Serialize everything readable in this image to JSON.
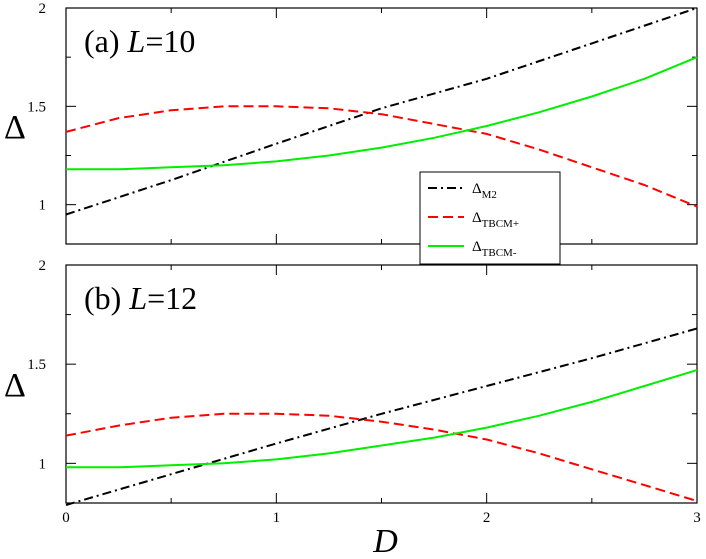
{
  "chart_data": [
    {
      "type": "line",
      "panel_label": "(a) ",
      "panel_var": "L",
      "panel_value": "=10",
      "xlabel": "D",
      "ylabel": "Δ",
      "xlim": [
        0,
        3
      ],
      "ylim": [
        0.8,
        2.0
      ],
      "xticks": [
        0,
        1,
        2,
        3
      ],
      "yticks": [
        1,
        1.5,
        2
      ],
      "ytick_labels": [
        "1",
        "1.5",
        "2"
      ],
      "grid": false,
      "legend_position": "bottom-center",
      "series": [
        {
          "name": "Δ",
          "sub": "M2",
          "color": "#000000",
          "style": "dashdot",
          "x": [
            0,
            0.5,
            1,
            1.5,
            2,
            2.5,
            3
          ],
          "y": [
            0.95,
            1.125,
            1.31,
            1.49,
            1.64,
            1.82,
            2.0
          ]
        },
        {
          "name": "Δ",
          "sub": "TBCM+",
          "color": "#ff0000",
          "style": "dashed",
          "x": [
            0,
            0.25,
            0.5,
            0.75,
            1,
            1.25,
            1.5,
            1.75,
            2,
            2.25,
            2.5,
            2.75,
            3
          ],
          "y": [
            1.37,
            1.44,
            1.48,
            1.5,
            1.5,
            1.49,
            1.46,
            1.41,
            1.36,
            1.28,
            1.19,
            1.1,
            0.99
          ]
        },
        {
          "name": "Δ",
          "sub": "TBCM-",
          "color": "#00ee00",
          "style": "solid",
          "x": [
            0,
            0.25,
            0.5,
            0.75,
            1,
            1.25,
            1.5,
            1.75,
            2,
            2.25,
            2.5,
            2.75,
            3
          ],
          "y": [
            1.18,
            1.18,
            1.19,
            1.2,
            1.22,
            1.25,
            1.29,
            1.34,
            1.4,
            1.47,
            1.55,
            1.64,
            1.75
          ]
        }
      ]
    },
    {
      "type": "line",
      "panel_label": "(b) ",
      "panel_var": "L",
      "panel_value": "=12",
      "xlabel": "D",
      "ylabel": "Δ",
      "xlim": [
        0,
        3
      ],
      "ylim": [
        0.8,
        2.0
      ],
      "xticks": [
        0,
        1,
        2,
        3
      ],
      "xtick_labels": [
        "0",
        "1",
        "2",
        "3"
      ],
      "yticks": [
        1,
        1.5,
        2
      ],
      "ytick_labels": [
        "1",
        "1.5",
        "2"
      ],
      "grid": false,
      "series": [
        {
          "name": "Δ",
          "sub": "M2",
          "color": "#000000",
          "style": "dashdot",
          "x": [
            0,
            0.5,
            1,
            1.5,
            2,
            2.5,
            3
          ],
          "y": [
            0.79,
            0.945,
            1.1,
            1.25,
            1.39,
            1.53,
            1.68
          ]
        },
        {
          "name": "Δ",
          "sub": "TBCM+",
          "color": "#ff0000",
          "style": "dashed",
          "x": [
            0,
            0.25,
            0.5,
            0.75,
            1,
            1.25,
            1.5,
            1.75,
            2,
            2.25,
            2.5,
            2.75,
            3
          ],
          "y": [
            1.14,
            1.19,
            1.23,
            1.25,
            1.25,
            1.24,
            1.21,
            1.17,
            1.12,
            1.05,
            0.97,
            0.89,
            0.81
          ]
        },
        {
          "name": "Δ",
          "sub": "TBCM-",
          "color": "#00ee00",
          "style": "solid",
          "x": [
            0,
            0.25,
            0.5,
            0.75,
            1,
            1.25,
            1.5,
            1.75,
            2,
            2.25,
            2.5,
            2.75,
            3
          ],
          "y": [
            0.98,
            0.98,
            0.99,
            1.0,
            1.02,
            1.05,
            1.09,
            1.13,
            1.18,
            1.24,
            1.31,
            1.39,
            1.47
          ]
        }
      ]
    }
  ]
}
